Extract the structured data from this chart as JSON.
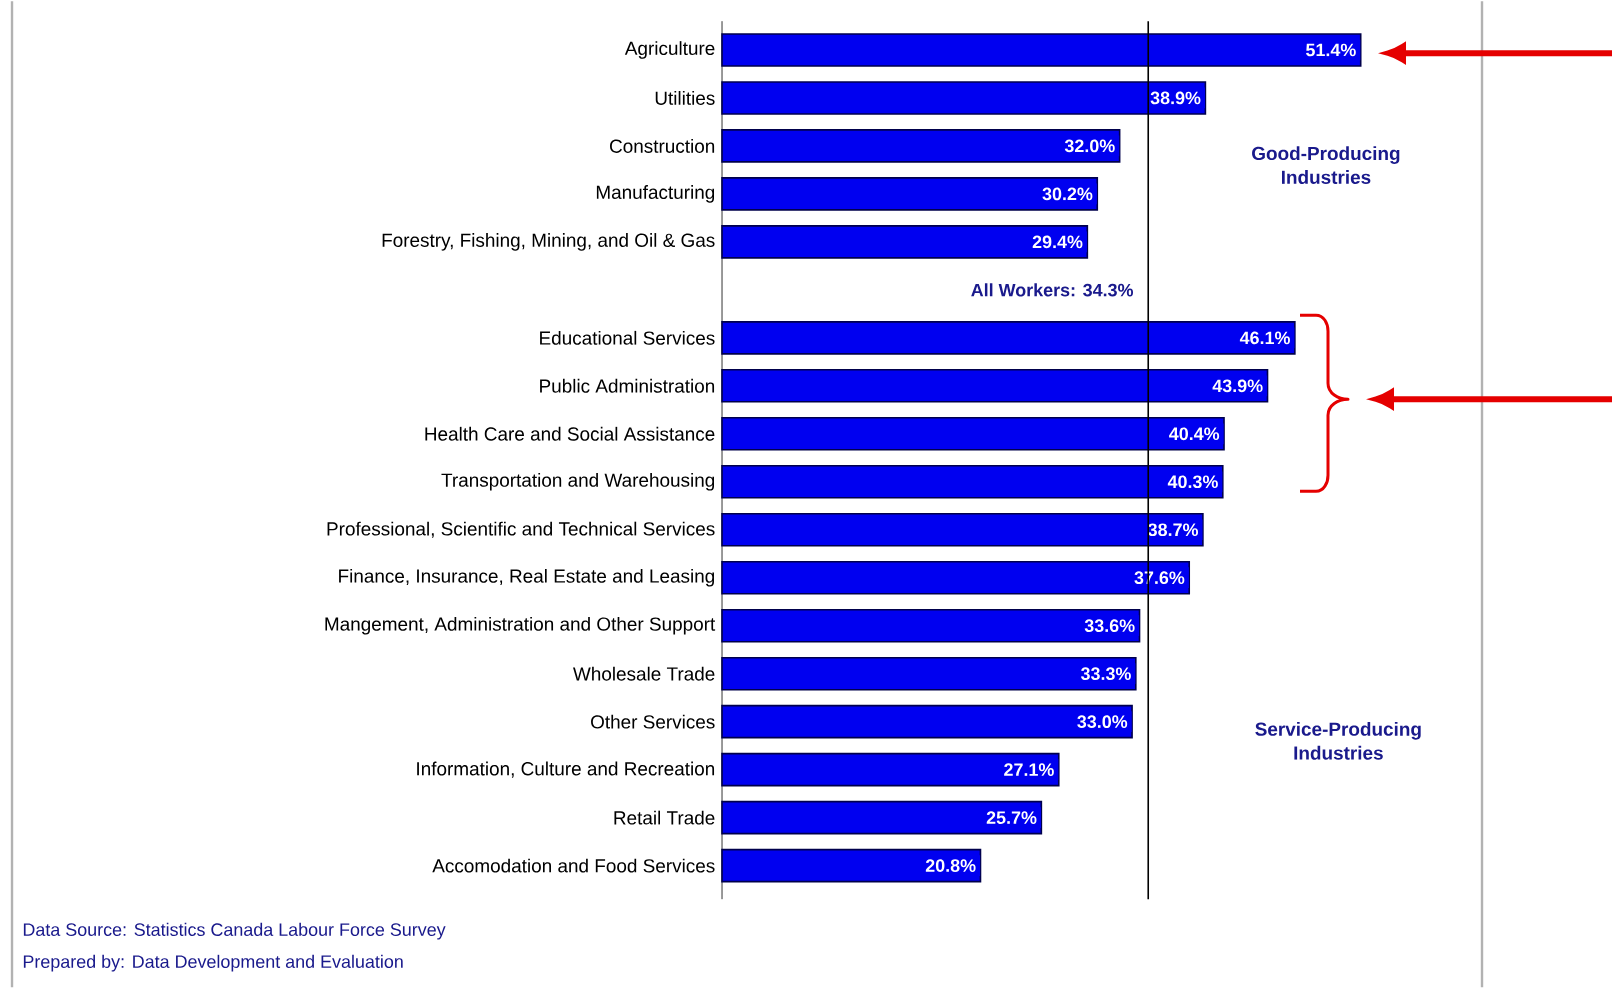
{
  "chart_data": {
    "type": "bar",
    "orientation": "horizontal",
    "categories": [
      "Agriculture",
      "Utilities",
      "Construction",
      "Manufacturing",
      "Forestry, Fishing, Mining, and Oil & Gas",
      null,
      "Educational Services",
      "Public Administration",
      "Health Care and Social Assistance",
      "Transportation and Warehousing",
      "Professional, Scientific and Technical Services",
      "Finance, Insurance, Real Estate and Leasing",
      "Mangement, Administration and Other Support",
      "Wholesale Trade",
      "Other Services",
      "Information, Culture and Recreation",
      "Retail Trade",
      "Accomodation and Food Services"
    ],
    "values": [
      51.4,
      38.9,
      32.0,
      30.2,
      29.4,
      null,
      46.1,
      43.9,
      40.4,
      40.3,
      38.7,
      37.6,
      33.6,
      33.3,
      33.0,
      27.1,
      25.7,
      20.8
    ],
    "value_labels": [
      "51.4%",
      "38.9%",
      "32.0%",
      "30.2%",
      "29.4%",
      null,
      "46.1%",
      "43.9%",
      "40.4%",
      "40.3%",
      "38.7%",
      "37.6%",
      "33.6%",
      "33.3%",
      "33.0%",
      "27.1%",
      "25.7%",
      "20.8%"
    ],
    "color": "#0000f0",
    "xlim": [
      0,
      61
    ],
    "tick_labels": "y",
    "ref_lines": [
      {
        "axis": "x",
        "value": 34.3,
        "label": "All Workers: 34.3%",
        "color": "#000000"
      }
    ],
    "annotations": [
      "Good-Producing Industries",
      "Service-Producing Industries",
      "Data Source: Statistics Canada Labour Force Survey",
      "Prepared by: Data Development and Evaluation"
    ]
  }
}
